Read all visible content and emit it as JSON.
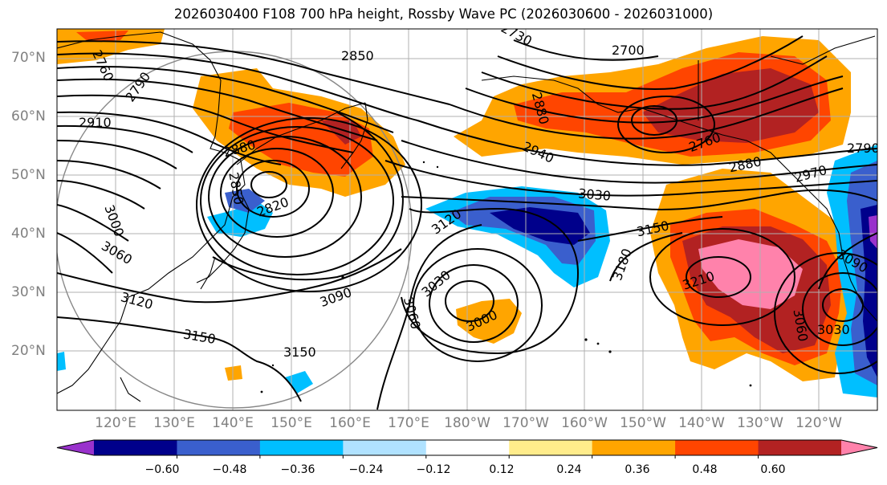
{
  "title": "2026030400 F108 700 hPa height, Rossby Wave PC (2026030600 - 2026031000)",
  "map": {
    "lon_range": [
      110,
      250
    ],
    "lat_range": [
      10,
      75
    ],
    "lat_ticks": [
      "20°N",
      "30°N",
      "40°N",
      "50°N",
      "60°N",
      "70°N"
    ],
    "lon_ticks": [
      "120°E",
      "130°E",
      "140°E",
      "150°E",
      "160°E",
      "170°E",
      "180°W",
      "170°W",
      "160°W",
      "150°W",
      "140°W",
      "130°W",
      "120°W"
    ],
    "contour_labels": [
      "2760",
      "2790",
      "2850",
      "2730",
      "2700",
      "2910",
      "2880",
      "2850",
      "2820",
      "2880",
      "2940",
      "2760",
      "2880",
      "2970",
      "2790",
      "3000",
      "3060",
      "3120",
      "3030",
      "3120",
      "3150",
      "3180",
      "3150",
      "3090",
      "3030",
      "3060",
      "3000",
      "3150",
      "3210",
      "3090",
      "3060",
      "3030"
    ]
  },
  "colorbar": {
    "colors": [
      "#9932cc",
      "#00008b",
      "#3a5fcd",
      "#00bfff",
      "#b0e2ff",
      "#ffffff",
      "#ffec8b",
      "#ffa500",
      "#ff4500",
      "#b22222",
      "#ff82ab"
    ],
    "ticks": [
      "−0.60",
      "−0.48",
      "−0.36",
      "−0.24",
      "−0.12",
      "0.12",
      "0.24",
      "0.36",
      "0.48",
      "0.60"
    ]
  }
}
